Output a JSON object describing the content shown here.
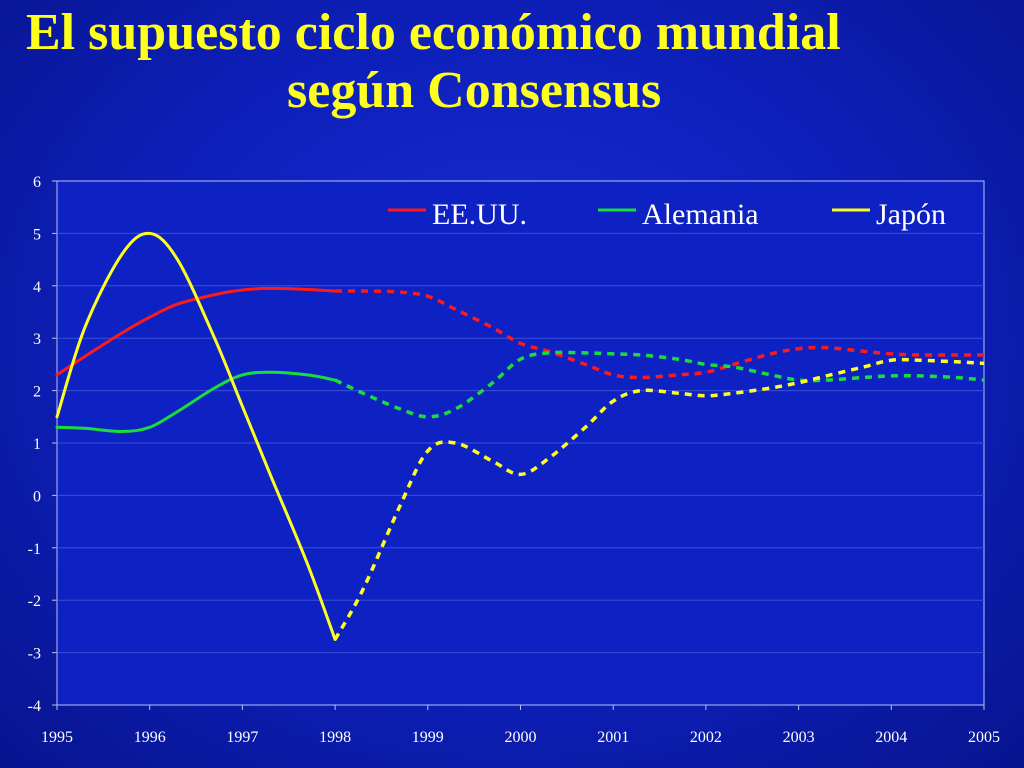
{
  "slide": {
    "title_line_1": "El supuesto ciclo económico mundial",
    "title_line_2": "según Consensus"
  },
  "colors": {
    "background": "#0d1fb8",
    "title": "#ffff1e",
    "text": "#ffffff",
    "grid": "#3a50d8",
    "axis": "#b8c0f0"
  },
  "chart_data": {
    "type": "line",
    "title": "",
    "xlabel": "",
    "ylabel": "",
    "xlim": [
      1995,
      2005
    ],
    "ylim": [
      -4,
      6
    ],
    "x_ticks": [
      "1995",
      "1996",
      "1997",
      "1998",
      "1999",
      "2000",
      "2001",
      "2002",
      "2003",
      "2004",
      "2005"
    ],
    "y_ticks": [
      "6",
      "5",
      "4",
      "3",
      "2",
      "1",
      "0",
      "-1",
      "-2",
      "-3",
      "-4"
    ],
    "grid": "horizontal",
    "legend_position": "top-right",
    "forecast_from": 1998,
    "line_style": "solid up to 1998 (actual), dashed after 1998 (forecast)",
    "series": [
      {
        "name": "EE.UU.",
        "color": "#ff1a1a",
        "x": [
          1995,
          1995.3,
          1995.7,
          1996,
          1996.3,
          1996.7,
          1997,
          1997.3,
          1997.7,
          1998,
          1998.3,
          1998.7,
          1999,
          1999.3,
          1999.7,
          2000,
          2000.3,
          2000.7,
          2001,
          2001.3,
          2001.7,
          2002,
          2002.3,
          2002.7,
          2003,
          2003.3,
          2003.7,
          2004,
          2004.3,
          2004.7,
          2005
        ],
        "values": [
          2.3,
          2.65,
          3.1,
          3.4,
          3.65,
          3.83,
          3.92,
          3.95,
          3.93,
          3.9,
          3.9,
          3.88,
          3.8,
          3.55,
          3.2,
          2.9,
          2.75,
          2.5,
          2.3,
          2.25,
          2.3,
          2.35,
          2.5,
          2.7,
          2.8,
          2.82,
          2.75,
          2.7,
          2.68,
          2.68,
          2.68
        ]
      },
      {
        "name": "Alemania",
        "color": "#1adc3c",
        "x": [
          1995,
          1995.3,
          1995.7,
          1996,
          1996.3,
          1996.7,
          1997,
          1997.3,
          1997.7,
          1998,
          1998.3,
          1998.7,
          1999,
          1999.3,
          1999.7,
          2000,
          2000.3,
          2000.7,
          2001,
          2001.3,
          2001.7,
          2002,
          2002.3,
          2002.7,
          2003,
          2003.3,
          2003.7,
          2004,
          2004.3,
          2004.7,
          2005
        ],
        "values": [
          1.3,
          1.28,
          1.22,
          1.3,
          1.6,
          2.05,
          2.3,
          2.35,
          2.3,
          2.2,
          1.95,
          1.65,
          1.5,
          1.65,
          2.15,
          2.6,
          2.72,
          2.72,
          2.7,
          2.68,
          2.6,
          2.5,
          2.45,
          2.3,
          2.2,
          2.2,
          2.25,
          2.28,
          2.28,
          2.25,
          2.2
        ]
      },
      {
        "name": "Japón",
        "color": "#ffff1e",
        "x": [
          1995,
          1995.3,
          1995.7,
          1996,
          1996.3,
          1996.7,
          1997,
          1997.3,
          1997.7,
          1998,
          1998.3,
          1998.7,
          1999,
          1999.3,
          1999.7,
          2000,
          2000.3,
          2000.7,
          2001,
          2001.3,
          2001.7,
          2002,
          2002.3,
          2002.7,
          2003,
          2003.3,
          2003.7,
          2004,
          2004.3,
          2004.7,
          2005
        ],
        "values": [
          1.5,
          3.2,
          4.6,
          5.0,
          4.5,
          3.0,
          1.7,
          0.4,
          -1.3,
          -2.75,
          -1.8,
          -0.2,
          0.85,
          1.0,
          0.65,
          0.4,
          0.7,
          1.3,
          1.8,
          2.0,
          1.95,
          1.9,
          1.95,
          2.05,
          2.15,
          2.28,
          2.45,
          2.58,
          2.58,
          2.55,
          2.52
        ]
      }
    ]
  }
}
